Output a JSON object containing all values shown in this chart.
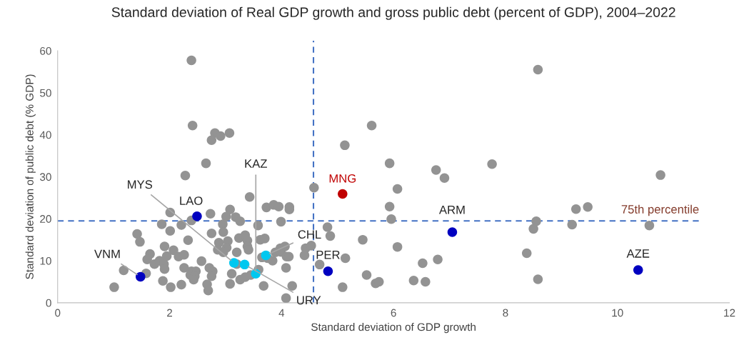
{
  "chart_data": {
    "type": "scatter",
    "title": "Standard deviation of Real GDP growth and gross public debt (percent of GDP), 2004–2022",
    "xlabel": "Standard deviation of GDP growth",
    "ylabel": "Standard deviation of public debt (% GDP)",
    "xlim": [
      0,
      12
    ],
    "ylim": [
      0,
      60
    ],
    "xticks": [
      0,
      2,
      4,
      6,
      8,
      10,
      12
    ],
    "yticks": [
      0,
      10,
      20,
      30,
      40,
      50,
      60
    ],
    "grid": false,
    "marker": "circle",
    "series": [
      {
        "color": "#939393",
        "x": [
          8.58,
          5.61,
          5.13,
          5.93,
          6.76,
          6.91,
          7.76,
          10.77,
          4.58,
          6.07,
          5.93,
          9.26,
          9.47,
          5.96,
          8.55,
          9.19,
          10.57,
          8.5,
          4.82,
          4.87,
          5.45,
          6.07,
          8.38,
          5.14,
          6.79,
          6.52,
          4.68,
          5.52,
          5.68,
          5.74,
          6.36,
          6.57,
          8.58,
          5.09,
          2.39,
          2.41,
          2.81,
          2.91,
          3.07,
          2.75,
          2.65,
          2.28,
          3.43,
          3.73,
          3.86,
          3.95,
          4.14,
          4.14,
          2.01,
          2.73,
          3.08,
          3.01,
          3.18,
          3.26,
          2.95,
          2.96,
          2.39,
          1.86,
          2.21,
          2.01,
          3.99,
          3.58,
          1.42,
          1.47,
          2.33,
          2.75,
          3.24,
          3.35,
          3.39,
          3.62,
          3.7,
          2.88,
          3.04,
          3.02,
          3.39,
          3.41,
          1.91,
          2.07,
          2.86,
          2.96,
          3.2,
          3.98,
          4.06,
          3.89,
          3.99,
          4.09,
          4.13,
          3.84,
          4.43,
          4.53,
          4.41,
          1.65,
          1.6,
          1.73,
          1.82,
          1.95,
          1.9,
          1.91,
          2.16,
          2.26,
          2.26,
          2.57,
          1.18,
          1.01,
          1.88,
          2.02,
          2.21,
          2.39,
          2.47,
          2.37,
          2.45,
          2.43,
          2.71,
          2.77,
          2.75,
          2.67,
          2.69,
          3.11,
          3.08,
          3.26,
          3.35,
          3.45,
          3.59,
          3.68,
          4.08,
          4.19,
          4.08,
          1.58,
          3.2,
          3.65,
          3.75
        ],
        "values": [
          55.5,
          42.2,
          37.5,
          33.2,
          31.6,
          29.7,
          33.0,
          30.4,
          27.4,
          27.1,
          22.9,
          22.3,
          22.8,
          19.9,
          19.4,
          18.6,
          18.4,
          17.6,
          18.0,
          15.9,
          15.0,
          13.3,
          11.8,
          10.6,
          10.3,
          9.4,
          9.1,
          6.6,
          4.6,
          5.0,
          5.3,
          5.0,
          5.6,
          3.7,
          57.7,
          42.2,
          40.4,
          39.7,
          40.4,
          38.7,
          33.2,
          30.3,
          25.2,
          22.7,
          23.3,
          22.9,
          22.8,
          22.2,
          21.5,
          21.2,
          22.2,
          20.5,
          20.4,
          19.4,
          18.7,
          16.8,
          19.6,
          18.7,
          18.5,
          17.1,
          19.3,
          18.4,
          16.4,
          14.5,
          14.9,
          16.5,
          15.4,
          16.1,
          14.8,
          15.0,
          15.3,
          14.3,
          14.7,
          13.1,
          13.4,
          12.6,
          13.4,
          12.5,
          12.6,
          12.0,
          12.0,
          13.0,
          13.4,
          12.0,
          12.1,
          11.0,
          11.0,
          10.0,
          13.0,
          13.6,
          11.3,
          11.6,
          10.3,
          9.2,
          10.0,
          11.1,
          9.2,
          8.0,
          11.0,
          11.4,
          8.3,
          9.9,
          7.7,
          3.7,
          5.2,
          3.7,
          4.3,
          7.5,
          7.5,
          6.6,
          6.3,
          5.5,
          8.3,
          7.5,
          6.3,
          4.4,
          2.9,
          6.9,
          4.5,
          5.5,
          6.1,
          6.6,
          7.9,
          4.0,
          8.3,
          4.0,
          1.1,
          7.0,
          9.2,
          10.8,
          10.6
        ]
      },
      {
        "color": "#0000c0",
        "x": [
          2.49,
          1.48,
          4.83,
          7.05,
          10.37
        ],
        "values": [
          20.6,
          6.2,
          7.5,
          16.8,
          7.8
        ]
      },
      {
        "color": "#00c8f0",
        "x": [
          3.15,
          3.34,
          3.54,
          3.72
        ],
        "values": [
          9.5,
          9.1,
          6.9,
          11.3
        ]
      },
      {
        "color": "#c00000",
        "x": [
          5.09
        ],
        "values": [
          25.9
        ]
      }
    ],
    "ref_lines": [
      {
        "axis": "x",
        "value": 4.57,
        "color": "#4472c4",
        "line_style": "dashed"
      },
      {
        "axis": "y",
        "value": 19.5,
        "label": "75th percentile",
        "color": "#4472c4",
        "line_style": "dashed"
      }
    ],
    "annotations": [
      {
        "text": "MNG",
        "x": 5.09,
        "y": 25.9
      },
      {
        "text": "LAO",
        "x": 2.49,
        "y": 20.6
      },
      {
        "text": "MYS",
        "x": 3.15,
        "y": 9.5
      },
      {
        "text": "KAZ",
        "x": 3.54,
        "y": 6.9
      },
      {
        "text": "CHL",
        "x": 3.72,
        "y": 11.3
      },
      {
        "text": "VNM",
        "x": 1.48,
        "y": 6.2
      },
      {
        "text": "URY",
        "x": 3.34,
        "y": 9.1
      },
      {
        "text": "PER",
        "x": 4.83,
        "y": 7.5
      },
      {
        "text": "ARM",
        "x": 7.05,
        "y": 16.8
      },
      {
        "text": "AZE",
        "x": 10.37,
        "y": 7.8
      }
    ]
  }
}
